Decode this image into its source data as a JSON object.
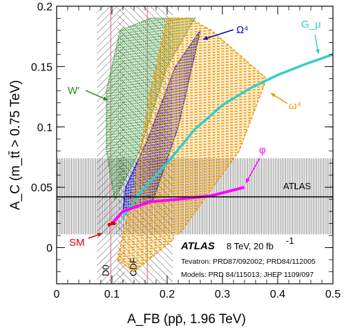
{
  "chart_data": {
    "type": "scatter",
    "xlabel": "A_FB (pp̄, 1.96 TeV)",
    "ylabel": "A_C (m_tt̄ > 0.75 TeV)",
    "xlim": [
      0,
      0.5
    ],
    "ylim": [
      -0.03,
      0.2
    ],
    "x_ticks": [
      "0",
      "0.1",
      "0.2",
      "0.3",
      "0.4",
      "0.5"
    ],
    "y_ticks": [
      "0",
      "0.05",
      "0.1",
      "0.15",
      "0.2"
    ],
    "x_tick_values": [
      0,
      0.1,
      0.2,
      0.3,
      0.4,
      0.5
    ],
    "y_tick_values": [
      0,
      0.05,
      0.1,
      0.15,
      0.2
    ],
    "atlas_measurement": {
      "label": "ATLAS",
      "central": 0.042,
      "band": [
        0.011,
        0.074
      ]
    },
    "tevatron_bands": [
      {
        "label": "D0",
        "central": 0.098,
        "band": [
          0.073,
          0.123
        ]
      },
      {
        "label": "CDF",
        "central": 0.164,
        "band": [
          0.11,
          0.21
        ]
      }
    ],
    "series": [
      {
        "name": "SM",
        "color": "#dd0000",
        "points": [
          [
            0.095,
            0.019
          ],
          [
            0.1,
            0.02
          ],
          [
            0.104,
            0.02
          ]
        ]
      },
      {
        "name": "W′",
        "color": "#228822",
        "region": [
          [
            0.105,
            0.04
          ],
          [
            0.09,
            0.08
          ],
          [
            0.09,
            0.13
          ],
          [
            0.115,
            0.18
          ],
          [
            0.17,
            0.19
          ],
          [
            0.25,
            0.19
          ],
          [
            0.2,
            0.15
          ],
          [
            0.15,
            0.08
          ]
        ]
      },
      {
        "name": "Ω⁴",
        "color": "#0000cc",
        "region": [
          [
            0.12,
            0.03
          ],
          [
            0.175,
            0.04
          ],
          [
            0.22,
            0.1
          ],
          [
            0.26,
            0.18
          ],
          [
            0.215,
            0.15
          ],
          [
            0.165,
            0.09
          ],
          [
            0.125,
            0.05
          ]
        ]
      },
      {
        "name": "ω⁴",
        "color": "#ee9900",
        "region": [
          [
            0.11,
            -0.01
          ],
          [
            0.14,
            -0.02
          ],
          [
            0.22,
            0.01
          ],
          [
            0.33,
            0.08
          ],
          [
            0.38,
            0.14
          ],
          [
            0.33,
            0.16
          ],
          [
            0.28,
            0.18
          ],
          [
            0.24,
            0.19
          ],
          [
            0.2,
            0.19
          ],
          [
            0.17,
            0.13
          ],
          [
            0.14,
            0.05
          ]
        ]
      },
      {
        "name": "G_μ",
        "color": "#33cccc",
        "points": [
          [
            0.12,
            0.025
          ],
          [
            0.15,
            0.045
          ],
          [
            0.2,
            0.07
          ],
          [
            0.25,
            0.098
          ],
          [
            0.3,
            0.118
          ],
          [
            0.35,
            0.132
          ],
          [
            0.4,
            0.143
          ],
          [
            0.45,
            0.152
          ],
          [
            0.5,
            0.16
          ]
        ]
      },
      {
        "name": "φ",
        "color": "#ff00ff",
        "points": [
          [
            0.1,
            0.02
          ],
          [
            0.12,
            0.03
          ],
          [
            0.17,
            0.038
          ],
          [
            0.22,
            0.04
          ],
          [
            0.28,
            0.043
          ],
          [
            0.34,
            0.05
          ]
        ]
      }
    ],
    "annotations": {
      "atlas_title": "ATLAS",
      "atlas_energy": "8 TeV, 20 fb",
      "atlas_energy_sup": "-1",
      "tevatron_ref": "Tevatron: PRD87/092002; PRD84/112005",
      "models_ref": "Models: PRD 84/115013; JHEP 1109/097"
    },
    "legend": "none"
  }
}
